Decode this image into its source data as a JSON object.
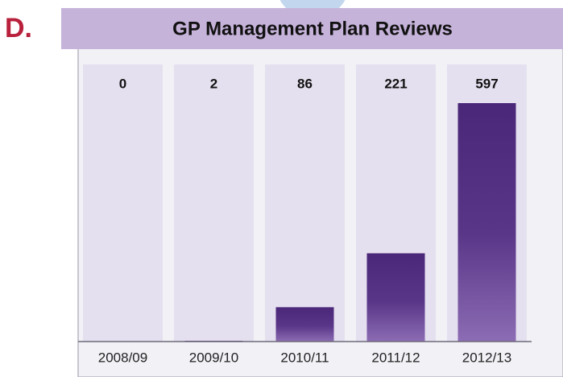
{
  "panel_label": "D.",
  "chart_data": {
    "type": "bar",
    "title": "GP Management Plan Reviews",
    "categories": [
      "2008/09",
      "2009/10",
      "2010/11",
      "2011/12",
      "2012/13"
    ],
    "values": [
      0,
      2,
      86,
      221,
      597
    ],
    "color": "#4b2779"
  }
}
